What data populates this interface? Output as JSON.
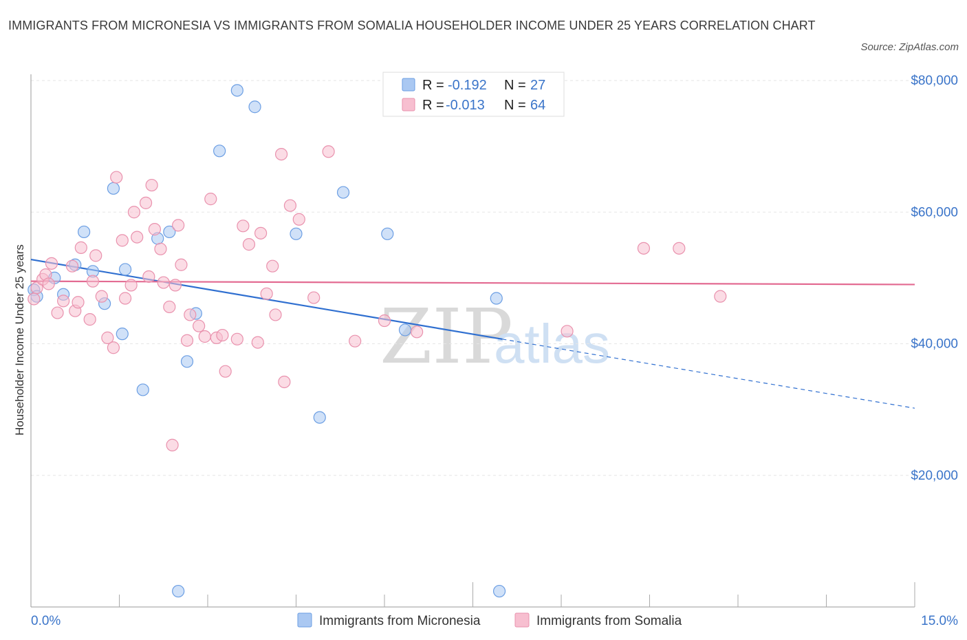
{
  "title": "IMMIGRANTS FROM MICRONESIA VS IMMIGRANTS FROM SOMALIA HOUSEHOLDER INCOME UNDER 25 YEARS CORRELATION CHART",
  "source": "Source: ZipAtlas.com",
  "watermark": {
    "zip": "ZIP",
    "atlas": "atlas"
  },
  "legend": {
    "rows": [
      {
        "r_label": "R =",
        "r_value": "-0.192",
        "n_label": "N =",
        "n_value": "27",
        "color": "#aac8f2",
        "stroke": "#6b9ee3"
      },
      {
        "r_label": "R =",
        "r_value": "-0.013",
        "n_label": "N =",
        "n_value": "64",
        "color": "#f7bfd0",
        "stroke": "#e991ad"
      }
    ]
  },
  "bottom_legend": [
    {
      "label": "Immigrants from Micronesia",
      "color": "#aac8f2",
      "stroke": "#6b9ee3"
    },
    {
      "label": "Immigrants from Somalia",
      "color": "#f7bfd0",
      "stroke": "#e991ad"
    }
  ],
  "chart_data": {
    "type": "scatter",
    "title": "IMMIGRANTS FROM MICRONESIA VS IMMIGRANTS FROM SOMALIA HOUSEHOLDER INCOME UNDER 25 YEARS CORRELATION CHART",
    "xlabel": "",
    "ylabel": "Householder Income Under 25 years",
    "xlim": [
      0,
      15
    ],
    "ylim": [
      0,
      80000
    ],
    "x_tick_labels": [
      "0.0%",
      "15.0%"
    ],
    "y_ticks": [
      20000,
      40000,
      60000,
      80000
    ],
    "y_tick_labels": [
      "$20,000",
      "$40,000",
      "$60,000",
      "$80,000"
    ],
    "grid": true,
    "series": [
      {
        "name": "Immigrants from Micronesia",
        "color": "#aac8f2",
        "stroke": "#6b9ee3",
        "trend": {
          "x0": 0.0,
          "y0": 52800,
          "x1": 8.0,
          "y1": 40700,
          "dash_to_x": 15.0,
          "dash_to_y": 30200,
          "color": "#2f6fd0"
        },
        "points": [
          [
            0.05,
            48200
          ],
          [
            0.1,
            47200
          ],
          [
            0.4,
            50000
          ],
          [
            0.55,
            47500
          ],
          [
            0.75,
            52000
          ],
          [
            0.9,
            57000
          ],
          [
            1.05,
            51000
          ],
          [
            1.25,
            46100
          ],
          [
            1.4,
            63600
          ],
          [
            1.55,
            41500
          ],
          [
            1.6,
            51300
          ],
          [
            1.9,
            33000
          ],
          [
            2.15,
            56000
          ],
          [
            2.35,
            57000
          ],
          [
            2.5,
            2400
          ],
          [
            2.65,
            37300
          ],
          [
            2.8,
            44600
          ],
          [
            3.2,
            69300
          ],
          [
            3.5,
            78500
          ],
          [
            3.8,
            76000
          ],
          [
            4.5,
            56700
          ],
          [
            4.9,
            28800
          ],
          [
            5.3,
            63000
          ],
          [
            6.05,
            56700
          ],
          [
            6.35,
            42100
          ],
          [
            7.9,
            46900
          ],
          [
            7.95,
            2400
          ]
        ]
      },
      {
        "name": "Immigrants from Somalia",
        "color": "#f7bfd0",
        "stroke": "#e991ad",
        "trend": {
          "x0": 0.0,
          "y0": 49500,
          "x1": 15.0,
          "y1": 49000,
          "color": "#e36b92"
        },
        "points": [
          [
            0.05,
            46800
          ],
          [
            0.1,
            48500
          ],
          [
            0.2,
            49800
          ],
          [
            0.25,
            50500
          ],
          [
            0.3,
            49100
          ],
          [
            0.35,
            52200
          ],
          [
            0.45,
            44700
          ],
          [
            0.55,
            46500
          ],
          [
            0.7,
            51800
          ],
          [
            0.75,
            45000
          ],
          [
            0.8,
            46300
          ],
          [
            0.85,
            54600
          ],
          [
            1.0,
            43700
          ],
          [
            1.05,
            49500
          ],
          [
            1.1,
            53400
          ],
          [
            1.2,
            47200
          ],
          [
            1.3,
            40900
          ],
          [
            1.4,
            39400
          ],
          [
            1.45,
            65300
          ],
          [
            1.55,
            55700
          ],
          [
            1.6,
            46900
          ],
          [
            1.7,
            48900
          ],
          [
            1.75,
            60000
          ],
          [
            1.8,
            56200
          ],
          [
            1.95,
            61400
          ],
          [
            2.0,
            50200
          ],
          [
            2.05,
            64100
          ],
          [
            2.1,
            57400
          ],
          [
            2.2,
            54400
          ],
          [
            2.25,
            49300
          ],
          [
            2.35,
            45600
          ],
          [
            2.4,
            24600
          ],
          [
            2.45,
            48900
          ],
          [
            2.5,
            58000
          ],
          [
            2.55,
            52000
          ],
          [
            2.65,
            40500
          ],
          [
            2.7,
            44400
          ],
          [
            2.85,
            42700
          ],
          [
            2.95,
            41100
          ],
          [
            3.05,
            62000
          ],
          [
            3.15,
            40900
          ],
          [
            3.25,
            41300
          ],
          [
            3.3,
            35800
          ],
          [
            3.5,
            40700
          ],
          [
            3.6,
            57900
          ],
          [
            3.7,
            55100
          ],
          [
            3.85,
            40200
          ],
          [
            3.9,
            56800
          ],
          [
            4.0,
            47600
          ],
          [
            4.1,
            51800
          ],
          [
            4.15,
            44400
          ],
          [
            4.25,
            68800
          ],
          [
            4.3,
            34200
          ],
          [
            4.4,
            61000
          ],
          [
            4.55,
            58900
          ],
          [
            4.8,
            47000
          ],
          [
            5.05,
            69200
          ],
          [
            5.5,
            40400
          ],
          [
            6.0,
            43500
          ],
          [
            6.55,
            41800
          ],
          [
            9.1,
            41900
          ],
          [
            10.4,
            54500
          ],
          [
            11.0,
            54500
          ],
          [
            11.7,
            47200
          ]
        ]
      }
    ]
  }
}
